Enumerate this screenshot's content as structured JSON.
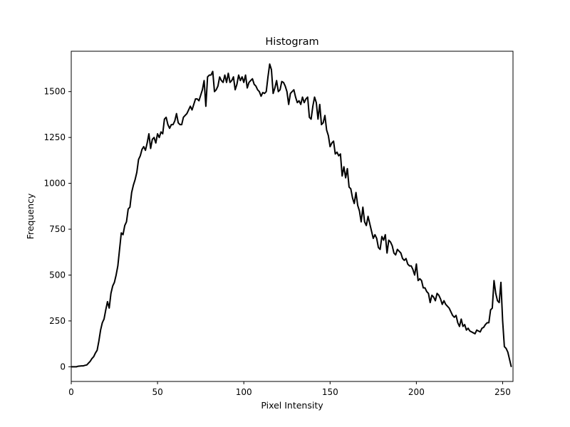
{
  "chart_data": {
    "type": "line",
    "title": "Histogram",
    "xlabel": "Pixel Intensity",
    "ylabel": "Frequency",
    "xlim": [
      0,
      256
    ],
    "ylim": [
      -80,
      1720
    ],
    "xticks": [
      0,
      50,
      100,
      150,
      200,
      250
    ],
    "yticks": [
      0,
      250,
      500,
      750,
      1000,
      1250,
      1500
    ],
    "grid": false,
    "legend": "none",
    "series": [
      {
        "color": "#000000",
        "x": [
          0,
          1,
          2,
          3,
          4,
          5,
          6,
          7,
          8,
          9,
          10,
          11,
          12,
          13,
          14,
          15,
          16,
          17,
          18,
          19,
          20,
          21,
          22,
          23,
          24,
          25,
          26,
          27,
          28,
          29,
          30,
          31,
          32,
          33,
          34,
          35,
          36,
          37,
          38,
          39,
          40,
          41,
          42,
          43,
          44,
          45,
          46,
          47,
          48,
          49,
          50,
          51,
          52,
          53,
          54,
          55,
          56,
          57,
          58,
          59,
          60,
          61,
          62,
          63,
          64,
          65,
          66,
          67,
          68,
          69,
          70,
          71,
          72,
          73,
          74,
          75,
          76,
          77,
          78,
          79,
          80,
          81,
          82,
          83,
          84,
          85,
          86,
          87,
          88,
          89,
          90,
          91,
          92,
          93,
          94,
          95,
          96,
          97,
          98,
          99,
          100,
          101,
          102,
          103,
          104,
          105,
          106,
          107,
          108,
          109,
          110,
          111,
          112,
          113,
          114,
          115,
          116,
          117,
          118,
          119,
          120,
          121,
          122,
          123,
          124,
          125,
          126,
          127,
          128,
          129,
          130,
          131,
          132,
          133,
          134,
          135,
          136,
          137,
          138,
          139,
          140,
          141,
          142,
          143,
          144,
          145,
          146,
          147,
          148,
          149,
          150,
          151,
          152,
          153,
          154,
          155,
          156,
          157,
          158,
          159,
          160,
          161,
          162,
          163,
          164,
          165,
          166,
          167,
          168,
          169,
          170,
          171,
          172,
          173,
          174,
          175,
          176,
          177,
          178,
          179,
          180,
          181,
          182,
          183,
          184,
          185,
          186,
          187,
          188,
          189,
          190,
          191,
          192,
          193,
          194,
          195,
          196,
          197,
          198,
          199,
          200,
          201,
          202,
          203,
          204,
          205,
          206,
          207,
          208,
          209,
          210,
          211,
          212,
          213,
          214,
          215,
          216,
          217,
          218,
          219,
          220,
          221,
          222,
          223,
          224,
          225,
          226,
          227,
          228,
          229,
          230,
          231,
          232,
          233,
          234,
          235,
          236,
          237,
          238,
          239,
          240,
          241,
          242,
          243,
          244,
          245,
          246,
          247,
          248,
          249,
          250,
          251,
          252,
          253,
          254,
          255
        ],
        "y": [
          0,
          0,
          0,
          0,
          3,
          4,
          5,
          5,
          8,
          10,
          20,
          30,
          45,
          55,
          75,
          90,
          140,
          200,
          240,
          260,
          310,
          355,
          320,
          400,
          440,
          460,
          500,
          550,
          640,
          730,
          720,
          770,
          790,
          860,
          870,
          950,
          990,
          1020,
          1060,
          1130,
          1150,
          1185,
          1200,
          1180,
          1220,
          1270,
          1190,
          1240,
          1250,
          1220,
          1270,
          1250,
          1280,
          1270,
          1350,
          1360,
          1320,
          1300,
          1320,
          1320,
          1340,
          1380,
          1330,
          1320,
          1320,
          1360,
          1370,
          1380,
          1400,
          1420,
          1400,
          1430,
          1460,
          1460,
          1450,
          1480,
          1510,
          1560,
          1420,
          1580,
          1590,
          1590,
          1610,
          1500,
          1510,
          1530,
          1580,
          1560,
          1550,
          1590,
          1550,
          1600,
          1550,
          1560,
          1580,
          1510,
          1540,
          1590,
          1560,
          1580,
          1550,
          1590,
          1520,
          1550,
          1560,
          1570,
          1540,
          1530,
          1510,
          1500,
          1475,
          1495,
          1490,
          1500,
          1580,
          1650,
          1620,
          1490,
          1520,
          1560,
          1500,
          1510,
          1555,
          1550,
          1530,
          1500,
          1430,
          1490,
          1500,
          1510,
          1470,
          1440,
          1450,
          1430,
          1470,
          1440,
          1460,
          1470,
          1360,
          1350,
          1420,
          1470,
          1440,
          1350,
          1430,
          1320,
          1330,
          1370,
          1290,
          1260,
          1200,
          1220,
          1230,
          1160,
          1170,
          1150,
          1160,
          1040,
          1090,
          1030,
          1080,
          980,
          970,
          920,
          890,
          950,
          880,
          850,
          790,
          870,
          790,
          770,
          820,
          780,
          740,
          700,
          720,
          700,
          650,
          640,
          710,
          690,
          720,
          620,
          690,
          680,
          660,
          620,
          610,
          640,
          630,
          620,
          590,
          580,
          590,
          560,
          550,
          550,
          530,
          500,
          560,
          470,
          480,
          470,
          430,
          430,
          410,
          400,
          350,
          390,
          380,
          360,
          400,
          390,
          370,
          340,
          360,
          340,
          330,
          320,
          300,
          280,
          270,
          280,
          240,
          220,
          260,
          220,
          230,
          200,
          210,
          195,
          190,
          185,
          180,
          200,
          195,
          190,
          210,
          215,
          230,
          240,
          240,
          310,
          320,
          470,
          400,
          360,
          350,
          460,
          250,
          110,
          100,
          80,
          40,
          0
        ]
      }
    ]
  }
}
